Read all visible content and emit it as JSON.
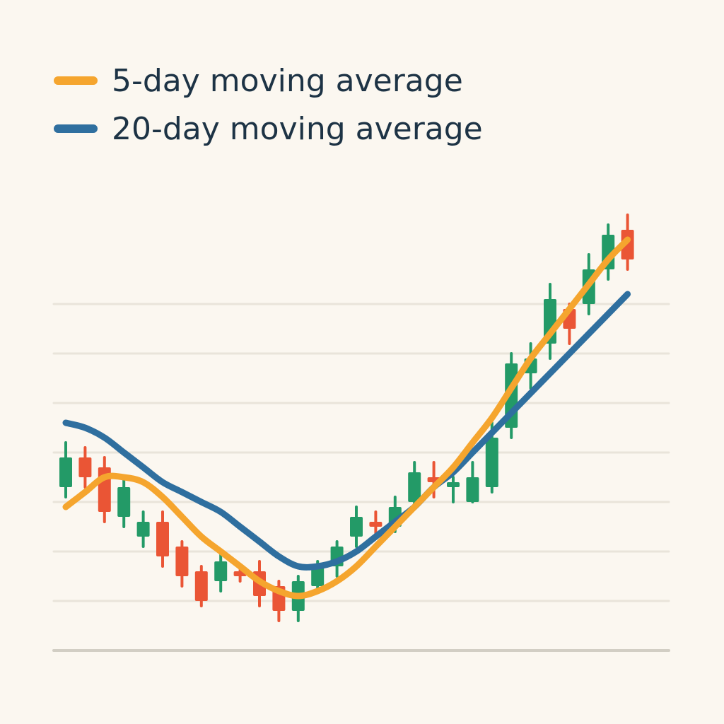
{
  "chart_data": {
    "type": "candlestick",
    "title": "",
    "xlabel": "",
    "ylabel": "",
    "ylim": [
      0,
      10
    ],
    "grid": true,
    "legend_position": "top-left",
    "legend": [
      {
        "key": "ma5",
        "label": "5-day moving average",
        "color": "#f5a52e"
      },
      {
        "key": "ma20",
        "label": "20-day moving average",
        "color": "#2f6f9f"
      }
    ],
    "colors": {
      "up": "#239a67",
      "down": "#ea5535",
      "grid": "#e9e4da",
      "baseline": "#d2cec4"
    },
    "candles": [
      {
        "o": 3.3,
        "c": 3.9,
        "h": 4.2,
        "l": 3.1
      },
      {
        "o": 3.9,
        "c": 3.5,
        "h": 4.1,
        "l": 3.3
      },
      {
        "o": 3.7,
        "c": 2.8,
        "h": 3.9,
        "l": 2.6
      },
      {
        "o": 2.7,
        "c": 3.3,
        "h": 3.5,
        "l": 2.5
      },
      {
        "o": 2.3,
        "c": 2.6,
        "h": 2.8,
        "l": 2.1
      },
      {
        "o": 2.6,
        "c": 1.9,
        "h": 2.8,
        "l": 1.7
      },
      {
        "o": 2.1,
        "c": 1.5,
        "h": 2.2,
        "l": 1.3
      },
      {
        "o": 1.6,
        "c": 1.0,
        "h": 1.7,
        "l": 0.9
      },
      {
        "o": 1.4,
        "c": 1.8,
        "h": 2.0,
        "l": 1.2
      },
      {
        "o": 1.6,
        "c": 1.5,
        "h": 1.7,
        "l": 1.4
      },
      {
        "o": 1.6,
        "c": 1.1,
        "h": 1.8,
        "l": 0.9
      },
      {
        "o": 1.3,
        "c": 0.8,
        "h": 1.4,
        "l": 0.6
      },
      {
        "o": 0.8,
        "c": 1.4,
        "h": 1.5,
        "l": 0.6
      },
      {
        "o": 1.3,
        "c": 1.7,
        "h": 1.8,
        "l": 1.2
      },
      {
        "o": 1.7,
        "c": 2.1,
        "h": 2.2,
        "l": 1.5
      },
      {
        "o": 2.3,
        "c": 2.7,
        "h": 2.9,
        "l": 2.1
      },
      {
        "o": 2.6,
        "c": 2.5,
        "h": 2.8,
        "l": 2.3
      },
      {
        "o": 2.5,
        "c": 2.9,
        "h": 3.1,
        "l": 2.4
      },
      {
        "o": 3.0,
        "c": 3.6,
        "h": 3.8,
        "l": 2.9
      },
      {
        "o": 3.5,
        "c": 3.4,
        "h": 3.8,
        "l": 3.1
      },
      {
        "o": 3.3,
        "c": 3.4,
        "h": 3.5,
        "l": 3.0
      },
      {
        "o": 3.0,
        "c": 3.5,
        "h": 3.8,
        "l": 3.0
      },
      {
        "o": 3.3,
        "c": 4.3,
        "h": 4.6,
        "l": 3.2
      },
      {
        "o": 4.5,
        "c": 5.8,
        "h": 6.0,
        "l": 4.3
      },
      {
        "o": 5.6,
        "c": 5.9,
        "h": 6.2,
        "l": 5.3
      },
      {
        "o": 6.2,
        "c": 7.1,
        "h": 7.4,
        "l": 5.9
      },
      {
        "o": 6.9,
        "c": 6.5,
        "h": 7.0,
        "l": 6.2
      },
      {
        "o": 7.0,
        "c": 7.7,
        "h": 8.0,
        "l": 6.8
      },
      {
        "o": 7.7,
        "c": 8.4,
        "h": 8.6,
        "l": 7.5
      },
      {
        "o": 8.5,
        "c": 7.9,
        "h": 8.8,
        "l": 7.7
      }
    ],
    "ma5": [
      2.9,
      3.2,
      3.5,
      3.5,
      3.4,
      3.1,
      2.7,
      2.3,
      2.0,
      1.7,
      1.4,
      1.2,
      1.1,
      1.2,
      1.4,
      1.7,
      2.1,
      2.5,
      2.9,
      3.3,
      3.7,
      4.2,
      4.7,
      5.3,
      5.9,
      6.4,
      6.9,
      7.4,
      7.9,
      8.3
    ],
    "ma20": [
      4.6,
      4.5,
      4.3,
      4.0,
      3.7,
      3.4,
      3.2,
      3.0,
      2.8,
      2.5,
      2.2,
      1.9,
      1.7,
      1.7,
      1.8,
      2.0,
      2.3,
      2.6,
      2.9,
      3.3,
      3.6,
      4.0,
      4.4,
      4.8,
      5.2,
      5.6,
      6.0,
      6.4,
      6.8,
      7.2
    ]
  }
}
